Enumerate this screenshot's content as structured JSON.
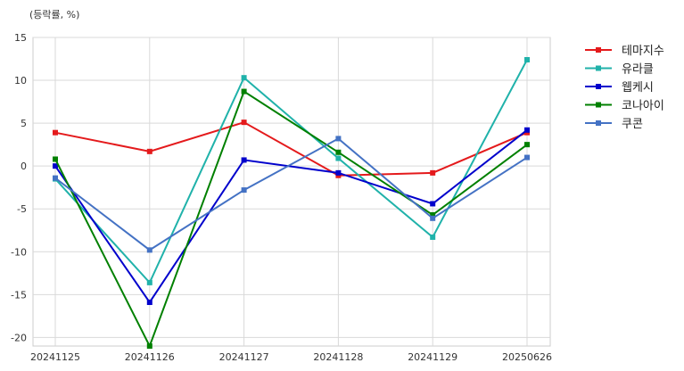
{
  "chart_data": {
    "type": "line",
    "unit_label": "(등락률, %)",
    "x": [
      "20241125",
      "20241126",
      "20241127",
      "20241128",
      "20241129",
      "20250626"
    ],
    "ylim": [
      -21,
      15
    ],
    "yticks": [
      15,
      10,
      5,
      0,
      -5,
      -10,
      -15,
      -20
    ],
    "grid": true,
    "legend_position": "right",
    "series": [
      {
        "name": "테마지수",
        "color": "#e41a1c",
        "values": [
          3.9,
          1.7,
          5.1,
          -1.1,
          -0.8,
          3.9
        ]
      },
      {
        "name": "유라클",
        "color": "#20b2aa",
        "values": [
          -1.5,
          -13.6,
          10.3,
          0.9,
          -8.3,
          12.4
        ]
      },
      {
        "name": "웹케시",
        "color": "#0000cc",
        "values": [
          0.0,
          -15.9,
          0.7,
          -0.8,
          -4.4,
          4.2
        ]
      },
      {
        "name": "코나아이",
        "color": "#008000",
        "values": [
          0.8,
          -21.0,
          8.7,
          1.6,
          -5.7,
          2.5
        ]
      },
      {
        "name": "쿠콘",
        "color": "#4472c4",
        "values": [
          -1.4,
          -9.8,
          -2.8,
          3.2,
          -6.1,
          1.0
        ]
      }
    ]
  }
}
